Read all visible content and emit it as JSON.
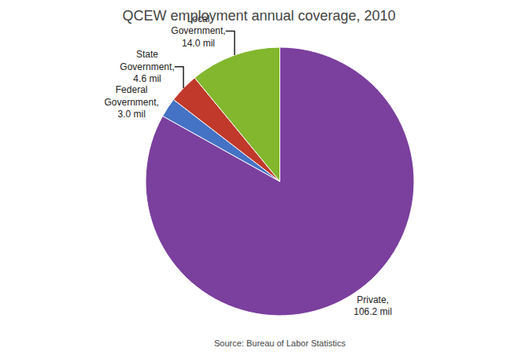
{
  "chart_data": {
    "type": "pie",
    "title": "QCEW employment annual coverage, 2010",
    "categories": [
      "Private,\n106.2 mil",
      "Federal\nGovernment,\n3.0 mil",
      "State\nGovernment,\n4.6 mil",
      "Local\nGovernment,\n14.0 mil"
    ],
    "values": [
      106.2,
      3.0,
      4.6,
      14.0
    ],
    "colors": [
      "#7B3F9E",
      "#4472C4",
      "#C0392B",
      "#82B72E"
    ],
    "data_labels": true,
    "annotations": [
      "Source: Bureau of Labor Statistics"
    ]
  }
}
